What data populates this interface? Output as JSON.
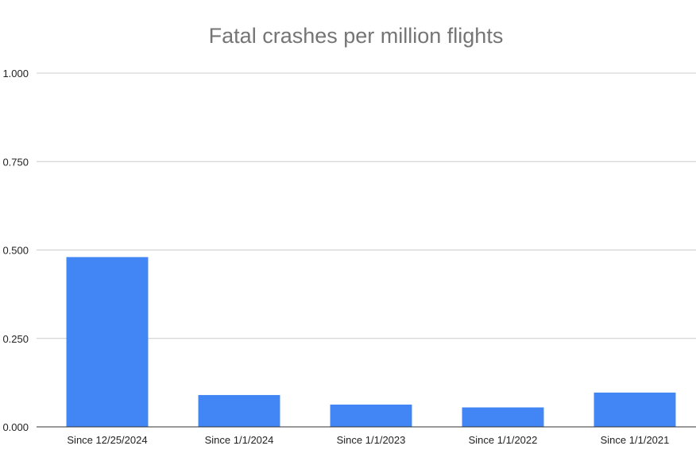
{
  "chart_data": {
    "type": "bar",
    "title": "Fatal crashes per million flights",
    "xlabel": "",
    "ylabel": "",
    "categories": [
      "Since 12/25/2024",
      "Since 1/1/2024",
      "Since 1/1/2023",
      "Since 1/1/2022",
      "Since 1/1/2021"
    ],
    "values": [
      0.48,
      0.09,
      0.063,
      0.055,
      0.097
    ],
    "ylim": [
      0,
      1.0
    ],
    "yticks": [
      "0.000",
      "0.250",
      "0.500",
      "0.750",
      "1.000"
    ],
    "grid": true,
    "legend": "none",
    "bar_color": "#4285F4",
    "grid_color": "#cccccc",
    "axis_color": "#333333"
  }
}
